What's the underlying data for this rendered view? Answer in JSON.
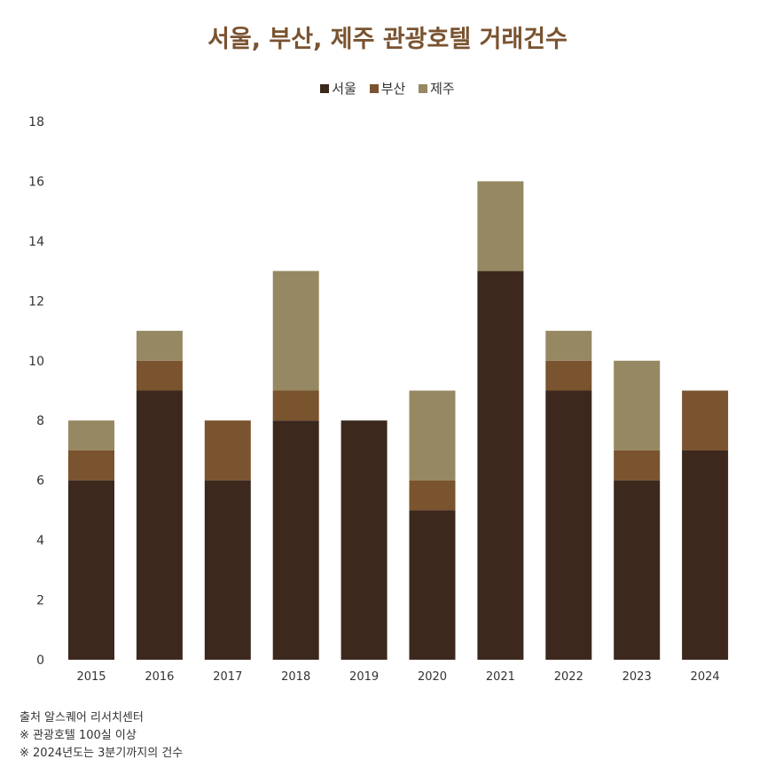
{
  "chart_data": {
    "type": "bar",
    "stacked": true,
    "title": "서울, 부산, 제주 관광호텔 거래건수",
    "categories": [
      "2015",
      "2016",
      "2017",
      "2018",
      "2019",
      "2020",
      "2021",
      "2022",
      "2023",
      "2024"
    ],
    "series": [
      {
        "name": "서울",
        "color": "#3c281d",
        "values": [
          6,
          9,
          6,
          8,
          8,
          5,
          13,
          9,
          6,
          7
        ]
      },
      {
        "name": "부산",
        "color": "#7a532f",
        "values": [
          1,
          1,
          2,
          1,
          0,
          1,
          0,
          1,
          1,
          2
        ]
      },
      {
        "name": "제주",
        "color": "#968862",
        "values": [
          1,
          1,
          0,
          4,
          0,
          3,
          3,
          1,
          3,
          0
        ]
      }
    ],
    "ylim": [
      0,
      18
    ],
    "yticks": [
      0,
      2,
      4,
      6,
      8,
      10,
      12,
      14,
      16,
      18
    ],
    "grid": false,
    "legend": "top-center"
  },
  "notes": [
    "출처  알스퀘어 리서치센터",
    "※ 관광호텔 100실 이상",
    "※ 2024년도는 3분기까지의 건수"
  ]
}
